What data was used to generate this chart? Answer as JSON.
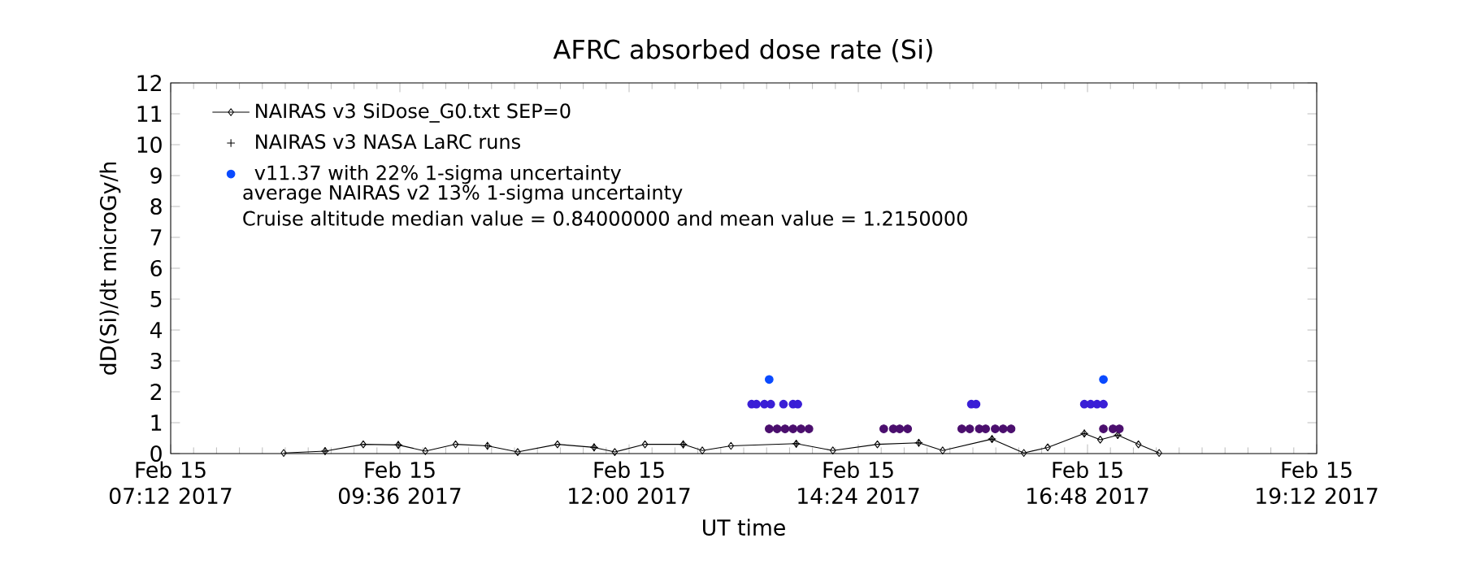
{
  "chart_data": {
    "type": "line",
    "title": "AFRC absorbed dose rate (Si)",
    "xlabel": "UT time",
    "ylabel": "dD(Si)/dt microGy/h",
    "xlim": [
      "2017-02-15T07:12",
      "2017-02-15T19:12"
    ],
    "xticks": [
      {
        "value": "2017-02-15T07:12",
        "label": "Feb 15 07:12 2017"
      },
      {
        "value": "2017-02-15T09:36",
        "label": "Feb 15 09:36 2017"
      },
      {
        "value": "2017-02-15T12:00",
        "label": "Feb 15 12:00 2017"
      },
      {
        "value": "2017-02-15T14:24",
        "label": "Feb 15 14:24 2017"
      },
      {
        "value": "2017-02-15T16:48",
        "label": "Feb 15 16:48 2017"
      },
      {
        "value": "2017-02-15T19:12",
        "label": "Feb 15 19:12 2017"
      }
    ],
    "ylim": [
      0,
      12
    ],
    "yticks": [
      0,
      1,
      2,
      3,
      4,
      5,
      6,
      7,
      8,
      9,
      10,
      11,
      12
    ],
    "grid": false,
    "legend": "top left",
    "annotations": [
      "average NAIRAS v2 13% 1-sigma uncertainty",
      "Cruise altitude median value = 0.84000000 and mean value = 1.2150000"
    ],
    "series": [
      {
        "name": "NAIRAS v3 SiDose_G0.txt SEP=0",
        "marker": "diamond",
        "color": "#000000",
        "x": [
          "2017-02-15T08:23",
          "2017-02-15T08:49",
          "2017-02-15T09:13",
          "2017-02-15T09:35",
          "2017-02-15T09:52",
          "2017-02-15T10:11",
          "2017-02-15T10:31",
          "2017-02-15T10:50",
          "2017-02-15T11:15",
          "2017-02-15T11:38",
          "2017-02-15T11:51",
          "2017-02-15T12:10",
          "2017-02-15T12:34",
          "2017-02-15T12:46",
          "2017-02-15T13:04",
          "2017-02-15T13:45",
          "2017-02-15T14:08",
          "2017-02-15T14:36",
          "2017-02-15T15:02",
          "2017-02-15T15:17",
          "2017-02-15T15:48",
          "2017-02-15T16:08",
          "2017-02-15T16:23",
          "2017-02-15T16:46",
          "2017-02-15T16:56",
          "2017-02-15T17:07",
          "2017-02-15T17:20",
          "2017-02-15T17:33"
        ],
        "values": [
          0.02,
          0.08,
          0.3,
          0.28,
          0.08,
          0.3,
          0.25,
          0.05,
          0.3,
          0.2,
          0.05,
          0.3,
          0.3,
          0.1,
          0.25,
          0.32,
          0.1,
          0.3,
          0.35,
          0.1,
          0.47,
          0.02,
          0.2,
          0.65,
          0.45,
          0.6,
          0.3,
          0.02
        ]
      },
      {
        "name": "NAIRAS v3 NASA LaRC runs",
        "type": "scatter",
        "marker": "cross",
        "color": "#000000",
        "x": [
          "2017-02-15T08:49",
          "2017-02-15T09:35",
          "2017-02-15T10:31",
          "2017-02-15T11:38",
          "2017-02-15T12:34",
          "2017-02-15T13:45",
          "2017-02-15T15:02",
          "2017-02-15T15:48",
          "2017-02-15T16:46",
          "2017-02-15T17:07"
        ],
        "values": [
          0.08,
          0.28,
          0.25,
          0.2,
          0.3,
          0.32,
          0.35,
          0.47,
          0.65,
          0.6
        ]
      },
      {
        "name": "v11.37 with 22% 1-sigma uncertainty",
        "type": "scatter",
        "marker": "circle",
        "color": "#0a4aff",
        "x": [
          "2017-02-15T13:17",
          "2017-02-15T13:20",
          "2017-02-15T13:25",
          "2017-02-15T13:29",
          "2017-02-15T13:28",
          "2017-02-15T13:37",
          "2017-02-15T13:43",
          "2017-02-15T13:46",
          "2017-02-15T13:28",
          "2017-02-15T13:33",
          "2017-02-15T13:38",
          "2017-02-15T13:43",
          "2017-02-15T13:48",
          "2017-02-15T13:53",
          "2017-02-15T14:40",
          "2017-02-15T14:46",
          "2017-02-15T14:50",
          "2017-02-15T14:55",
          "2017-02-15T15:29",
          "2017-02-15T15:34",
          "2017-02-15T15:40",
          "2017-02-15T15:44",
          "2017-02-15T15:50",
          "2017-02-15T15:55",
          "2017-02-15T16:00",
          "2017-02-15T15:35",
          "2017-02-15T15:38",
          "2017-02-15T16:46",
          "2017-02-15T16:50",
          "2017-02-15T16:54",
          "2017-02-15T16:58",
          "2017-02-15T16:58",
          "2017-02-15T16:58",
          "2017-02-15T17:04",
          "2017-02-15T17:08"
        ],
        "values": [
          1.6,
          1.6,
          1.6,
          1.6,
          2.4,
          1.6,
          1.6,
          1.6,
          0.8,
          0.8,
          0.8,
          0.8,
          0.8,
          0.8,
          0.8,
          0.8,
          0.8,
          0.8,
          0.8,
          0.8,
          0.8,
          0.8,
          0.8,
          0.8,
          0.8,
          1.6,
          1.6,
          1.6,
          1.6,
          1.6,
          1.6,
          2.4,
          0.8,
          0.8,
          0.8
        ],
        "colors": [
          "#3a1fd6",
          "#3a1fd6",
          "#3a1fd6",
          "#3a1fd6",
          "#0a4aff",
          "#3a1fd6",
          "#3a1fd6",
          "#3a1fd6",
          "#4b0f6e",
          "#4b0f6e",
          "#4b0f6e",
          "#4b0f6e",
          "#4b0f6e",
          "#4b0f6e",
          "#4b0f6e",
          "#4b0f6e",
          "#4b0f6e",
          "#4b0f6e",
          "#4b0f6e",
          "#4b0f6e",
          "#4b0f6e",
          "#4b0f6e",
          "#4b0f6e",
          "#4b0f6e",
          "#4b0f6e",
          "#3a1fd6",
          "#3a1fd6",
          "#3a1fd6",
          "#3a1fd6",
          "#3a1fd6",
          "#3a1fd6",
          "#0a4aff",
          "#4b0f6e",
          "#4b0f6e",
          "#4b0f6e"
        ]
      }
    ]
  }
}
